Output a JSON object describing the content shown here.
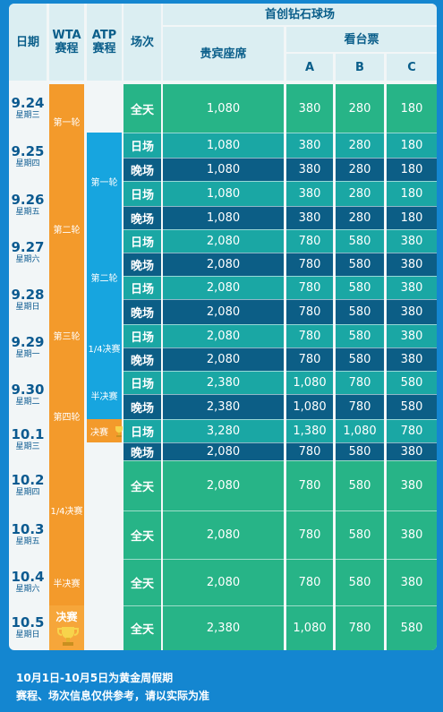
{
  "header": {
    "date": "日期",
    "wta": "WTA\n赛程",
    "atp": "ATP\n赛程",
    "session": "场次",
    "venue": "首创钻石球场",
    "vip": "贵宾座席",
    "stand": "看台票",
    "cols": [
      "A",
      "B",
      "C"
    ]
  },
  "dates": [
    {
      "d": "9.24",
      "w": "星期三"
    },
    {
      "d": "9.25",
      "w": "星期四"
    },
    {
      "d": "9.26",
      "w": "星期五"
    },
    {
      "d": "9.27",
      "w": "星期六"
    },
    {
      "d": "9.28",
      "w": "星期日"
    },
    {
      "d": "9.29",
      "w": "星期一"
    },
    {
      "d": "9.30",
      "w": "星期二"
    },
    {
      "d": "10.1",
      "w": "星期三"
    },
    {
      "d": "10.2",
      "w": "星期四"
    },
    {
      "d": "10.3",
      "w": "星期五"
    },
    {
      "d": "10.4",
      "w": "星期六"
    },
    {
      "d": "10.5",
      "w": "星期日"
    }
  ],
  "wta_rounds": [
    "第一轮",
    "第二轮",
    "第三轮",
    "第四轮",
    "1/4决赛",
    "半决赛",
    "决赛"
  ],
  "atp_rounds": [
    "第一轮",
    "第二轮",
    "1/4决赛",
    "半决赛",
    "决赛"
  ],
  "rows": [
    {
      "s": "全天",
      "p": [
        "1,080",
        "380",
        "280",
        "180"
      ]
    },
    {
      "s": "日场",
      "p": [
        "1,080",
        "380",
        "280",
        "180"
      ]
    },
    {
      "s": "晚场",
      "p": [
        "1,080",
        "380",
        "280",
        "180"
      ]
    },
    {
      "s": "日场",
      "p": [
        "1,080",
        "380",
        "280",
        "180"
      ]
    },
    {
      "s": "晚场",
      "p": [
        "1,080",
        "380",
        "280",
        "180"
      ]
    },
    {
      "s": "日场",
      "p": [
        "2,080",
        "780",
        "580",
        "380"
      ]
    },
    {
      "s": "晚场",
      "p": [
        "2,080",
        "780",
        "580",
        "380"
      ]
    },
    {
      "s": "日场",
      "p": [
        "2,080",
        "780",
        "580",
        "380"
      ]
    },
    {
      "s": "晚场",
      "p": [
        "2,080",
        "780",
        "580",
        "380"
      ]
    },
    {
      "s": "日场",
      "p": [
        "2,080",
        "780",
        "580",
        "380"
      ]
    },
    {
      "s": "晚场",
      "p": [
        "2,080",
        "780",
        "580",
        "380"
      ]
    },
    {
      "s": "日场",
      "p": [
        "2,380",
        "1,080",
        "780",
        "580"
      ]
    },
    {
      "s": "晚场",
      "p": [
        "2,380",
        "1,080",
        "780",
        "580"
      ]
    },
    {
      "s": "日场",
      "p": [
        "3,280",
        "1,380",
        "1,080",
        "780"
      ]
    },
    {
      "s": "晚场",
      "p": [
        "2,080",
        "780",
        "580",
        "380"
      ]
    },
    {
      "s": "全天",
      "p": [
        "2,080",
        "780",
        "580",
        "380"
      ]
    },
    {
      "s": "全天",
      "p": [
        "2,080",
        "780",
        "580",
        "380"
      ]
    },
    {
      "s": "全天",
      "p": [
        "2,080",
        "780",
        "580",
        "380"
      ]
    },
    {
      "s": "全天",
      "p": [
        "2,380",
        "1,080",
        "780",
        "580"
      ]
    }
  ],
  "footer": {
    "line1": "10月1日-10月5日为黄金周假期",
    "line2": "赛程、场次信息仅供参考，请以实际为准"
  },
  "colors": {
    "green": "#27b487",
    "teal": "#1aa7a4",
    "navy": "#0c5e86",
    "wta": "#f39a2b",
    "atp": "#17a5df",
    "bg": "#1486d0"
  }
}
